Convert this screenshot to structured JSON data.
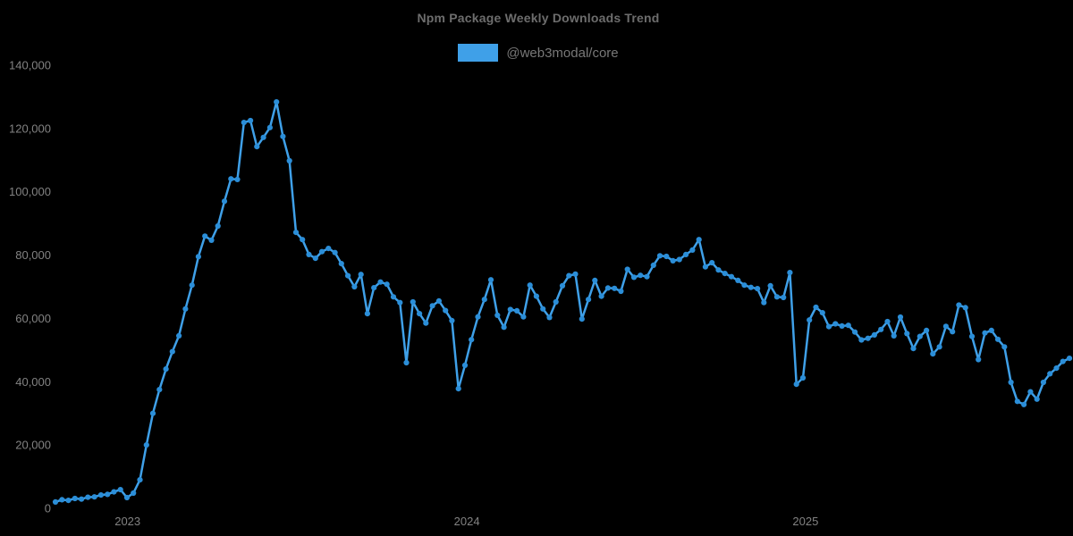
{
  "title": "Npm Package Weekly Downloads Trend",
  "legend": {
    "label": "@web3modal/core",
    "swatch_color": "#3fa0e8"
  },
  "colors": {
    "background": "#000000",
    "line": "#3fa0e8",
    "marker": "#2b8ed8",
    "title_text": "#6d6d6d",
    "legend_text": "#787878",
    "tick_text": "#828282"
  },
  "chart_data": {
    "type": "line",
    "title": "Npm Package Weekly Downloads Trend",
    "xlabel": "",
    "ylabel": "",
    "grid": false,
    "legend_position": "top",
    "marker": "circle",
    "x_axis": {
      "unit": "week",
      "start_date": "2022-10-16",
      "step_days": 7,
      "tick_labels": [
        "2023",
        "2024",
        "2025"
      ],
      "tick_week_indices": [
        11.1,
        63.3,
        115.4
      ]
    },
    "y_axis": {
      "min": 0,
      "max": 140000,
      "tick_step": 20000,
      "tick_labels": [
        "0",
        "20,000",
        "40,000",
        "60,000",
        "80,000",
        "100,000",
        "120,000",
        "140,000"
      ]
    },
    "series": [
      {
        "name": "@web3modal/core",
        "color": "#3fa0e8",
        "values": [
          2000,
          2700,
          2500,
          3100,
          2900,
          3500,
          3600,
          4200,
          4400,
          5200,
          5900,
          3400,
          4800,
          9000,
          20000,
          30000,
          37500,
          44000,
          49500,
          54500,
          63000,
          70500,
          79500,
          86000,
          84700,
          89200,
          97000,
          104100,
          103900,
          121900,
          122500,
          114300,
          117200,
          120300,
          128400,
          117500,
          109800,
          87200,
          84900,
          80200,
          79000,
          81100,
          82100,
          80800,
          77300,
          73500,
          70000,
          73900,
          61500,
          69700,
          71500,
          70800,
          66800,
          65000,
          46000,
          65200,
          61500,
          58500,
          64000,
          65500,
          62500,
          59300,
          37800,
          45200,
          53300,
          60500,
          66000,
          72200,
          61000,
          57200,
          62800,
          62400,
          60500,
          70500,
          67000,
          63000,
          60300,
          65200,
          70300,
          73500,
          74000,
          59800,
          66000,
          72000,
          67000,
          69600,
          69500,
          68600,
          75500,
          73000,
          73600,
          73200,
          76800,
          79800,
          79600,
          78200,
          78600,
          80200,
          81600,
          84900,
          76300,
          77600,
          75300,
          74200,
          73200,
          72000,
          70500,
          69800,
          69400,
          65000,
          70300,
          66800,
          66600,
          74500,
          39200,
          41200,
          59500,
          63500,
          61800,
          57400,
          58300,
          57600,
          57800,
          55700,
          53200,
          53700,
          54800,
          56500,
          59000,
          54500,
          60400,
          55200,
          50500,
          54300,
          56200,
          48800,
          51000,
          57500,
          55800,
          64200,
          63400,
          54300,
          47000,
          55400,
          56200,
          53400,
          51000,
          39800,
          33800,
          32800,
          36800,
          34500,
          39800,
          42500,
          44300,
          46400,
          47400
        ]
      }
    ]
  }
}
